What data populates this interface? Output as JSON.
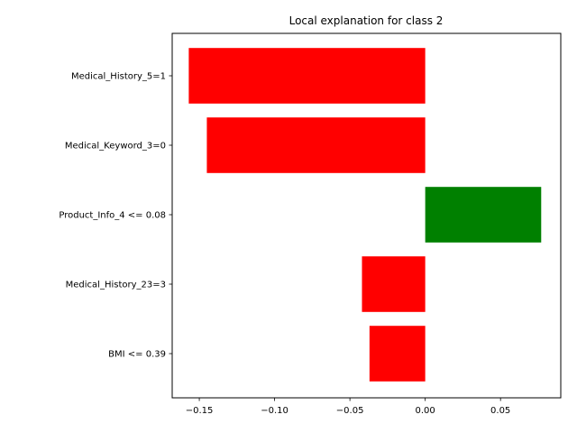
{
  "chart_data": {
    "type": "bar",
    "orientation": "horizontal",
    "title": "Local explanation for class 2",
    "xlabel": "",
    "ylabel": "",
    "categories": [
      "Medical_History_5=1",
      "Medical_Keyword_3=0",
      "Product_Info_4 <= 0.08",
      "Medical_History_23=3",
      "BMI <= 0.39"
    ],
    "values": [
      -0.157,
      -0.145,
      0.077,
      -0.042,
      -0.037
    ],
    "xlim": [
      -0.168,
      0.09
    ],
    "xticks": [
      -0.15,
      -0.1,
      -0.05,
      0.0,
      0.05
    ],
    "xtick_labels": [
      "−0.15",
      "−0.10",
      "−0.05",
      "0.00",
      "0.05"
    ],
    "colors": {
      "positive": "#008000",
      "negative": "#ff0000"
    },
    "grid": false,
    "legend": "none"
  }
}
